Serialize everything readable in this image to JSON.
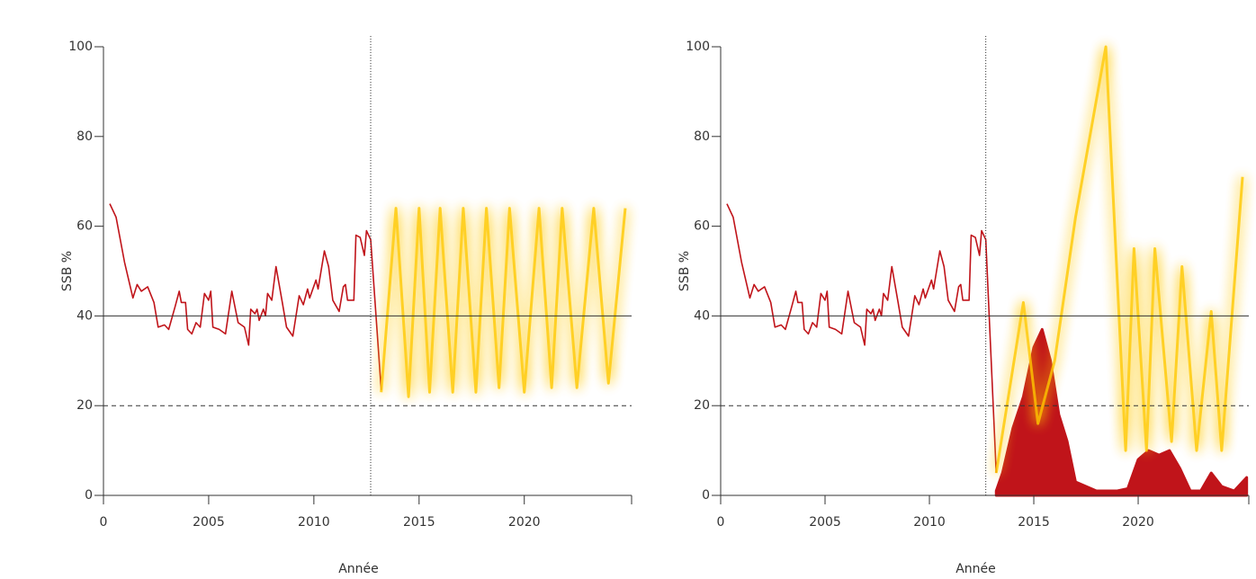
{
  "chart_data": [
    {
      "type": "line",
      "ylabel": "SSB %",
      "xlabel": "Année",
      "xlim": [
        2000,
        2025.1
      ],
      "ylim": [
        0,
        100
      ],
      "xticks": [
        {
          "value": 2000,
          "label": "0"
        },
        2005,
        2010,
        2015,
        2020
      ],
      "yticks": [
        0,
        20,
        40,
        60,
        80,
        100
      ],
      "vline": 2012.7,
      "hlines": [
        {
          "value": 40,
          "style": "solid"
        },
        {
          "value": 20,
          "style": "dashed"
        }
      ],
      "series": [
        {
          "color": "#c0141a",
          "glow": false,
          "x": [
            2000.3,
            2000.6,
            2001,
            2001.4,
            2001.6,
            2001.8,
            2002.1,
            2002.4,
            2002.6,
            2002.9,
            2003.1,
            2003.4,
            2003.6,
            2003.7,
            2003.9,
            2004,
            2004.2,
            2004.4,
            2004.6,
            2004.8,
            2005,
            2005.1,
            2005.2,
            2005.5,
            2005.8,
            2006.1,
            2006.4,
            2006.7,
            2006.9,
            2007,
            2007.2,
            2007.3,
            2007.4,
            2007.6,
            2007.7,
            2007.8,
            2008,
            2008.2,
            2008.5,
            2008.7,
            2009,
            2009.3,
            2009.5,
            2009.7,
            2009.8,
            2010.1,
            2010.2,
            2010.5,
            2010.7,
            2010.9,
            2011.2,
            2011.4,
            2011.5,
            2011.6,
            2011.9,
            2012,
            2012.2,
            2012.4,
            2012.5,
            2012.7,
            2013.2
          ],
          "values": [
            65,
            62,
            52,
            44,
            47,
            45.5,
            46.5,
            43,
            37.5,
            38,
            37,
            42,
            45.5,
            43,
            43,
            37,
            36,
            38.5,
            37.5,
            45,
            43.5,
            45.5,
            37.5,
            37,
            36,
            45.5,
            38.5,
            37.5,
            33.5,
            41.5,
            40.5,
            41.5,
            39,
            41.5,
            40,
            45,
            43.5,
            51,
            43,
            37.5,
            35.5,
            44.5,
            42.5,
            46,
            44,
            48,
            46,
            54.5,
            51,
            43.5,
            41,
            46.5,
            47,
            43.5,
            43.5,
            58,
            57.5,
            53.5,
            59,
            57,
            23.5
          ]
        },
        {
          "color": "#ffc800",
          "glow": true,
          "x": [
            2013.2,
            2013.9,
            2014.5,
            2015,
            2015.5,
            2016,
            2016.6,
            2017.1,
            2017.7,
            2018.2,
            2018.8,
            2019.3,
            2020,
            2020.7,
            2021.3,
            2021.8,
            2022.5,
            2023.3,
            2024,
            2024.8
          ],
          "values": [
            23,
            64,
            22,
            64,
            23,
            64,
            23,
            64,
            23,
            64,
            24,
            64,
            23,
            64,
            24,
            64,
            24,
            64,
            25,
            64
          ]
        }
      ]
    },
    {
      "type": "line",
      "ylabel": "SSB %",
      "xlabel": "Année",
      "xlim": [
        2000,
        2025.3
      ],
      "ylim": [
        0,
        100
      ],
      "xticks": [
        {
          "value": 2000,
          "label": "0"
        },
        2005,
        2010,
        2015,
        2020
      ],
      "yticks": [
        0,
        20,
        40,
        60,
        80,
        100
      ],
      "vline": 2012.7,
      "hlines": [
        {
          "value": 40,
          "style": "solid"
        },
        {
          "value": 20,
          "style": "dashed"
        }
      ],
      "series": [
        {
          "type": "area",
          "color": "#c0141a",
          "x": [
            2013.2,
            2013.5,
            2014,
            2014.5,
            2015,
            2015.4,
            2015.8,
            2016.2,
            2016.6,
            2017,
            2018,
            2019,
            2019.5,
            2020,
            2020.5,
            2021,
            2021.5,
            2022,
            2022.5,
            2023,
            2023.5,
            2024,
            2024.6,
            2025.2
          ],
          "values": [
            1,
            5,
            15,
            22,
            33,
            37,
            30,
            18,
            12,
            3,
            1,
            1,
            1.5,
            8,
            10,
            9,
            10,
            6,
            1,
            1,
            5,
            2,
            1,
            4
          ]
        },
        {
          "color": "#c0141a",
          "glow": false,
          "x": [
            2000.3,
            2000.6,
            2001,
            2001.4,
            2001.6,
            2001.8,
            2002.1,
            2002.4,
            2002.6,
            2002.9,
            2003.1,
            2003.4,
            2003.6,
            2003.7,
            2003.9,
            2004,
            2004.2,
            2004.4,
            2004.6,
            2004.8,
            2005,
            2005.1,
            2005.2,
            2005.5,
            2005.8,
            2006.1,
            2006.4,
            2006.7,
            2006.9,
            2007,
            2007.2,
            2007.3,
            2007.4,
            2007.6,
            2007.7,
            2007.8,
            2008,
            2008.2,
            2008.5,
            2008.7,
            2009,
            2009.3,
            2009.5,
            2009.7,
            2009.8,
            2010.1,
            2010.2,
            2010.5,
            2010.7,
            2010.9,
            2011.2,
            2011.4,
            2011.5,
            2011.6,
            2011.9,
            2012,
            2012.2,
            2012.4,
            2012.5,
            2012.7,
            2013.2
          ],
          "values": [
            65,
            62,
            52,
            44,
            47,
            45.5,
            46.5,
            43,
            37.5,
            38,
            37,
            42,
            45.5,
            43,
            43,
            37,
            36,
            38.5,
            37.5,
            45,
            43.5,
            45.5,
            37.5,
            37,
            36,
            45.5,
            38.5,
            37.5,
            33.5,
            41.5,
            40.5,
            41.5,
            39,
            41.5,
            40,
            45,
            43.5,
            51,
            43,
            37.5,
            35.5,
            44.5,
            42.5,
            46,
            44,
            48,
            46,
            54.5,
            51,
            43.5,
            41,
            46.5,
            47,
            43.5,
            43.5,
            58,
            57.5,
            53.5,
            59,
            57,
            5
          ]
        },
        {
          "color": "#ffc800",
          "glow": true,
          "x": [
            2013.2,
            2014.5,
            2015.2,
            2016,
            2017,
            2018.45,
            2019.4,
            2019.8,
            2020.4,
            2020.8,
            2021.6,
            2022.1,
            2022.8,
            2023.5,
            2024,
            2025
          ],
          "values": [
            5,
            43,
            16,
            30,
            62,
            100,
            10,
            55,
            10,
            55,
            12,
            51,
            10,
            41,
            10,
            71
          ]
        }
      ]
    }
  ]
}
